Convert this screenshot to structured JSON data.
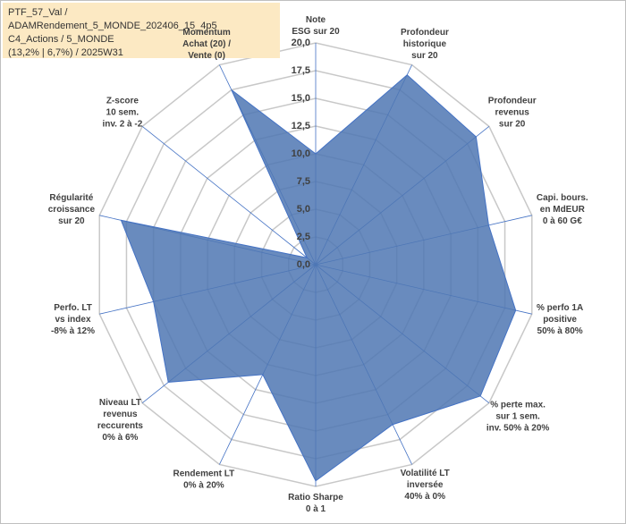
{
  "chart_data": {
    "type": "radar",
    "title": "PTF_57_Val / ADAMRendement_5_MONDE_202406_15_4p5\nC4_Actions / 5_MONDE\n(13,2% | 6,7%) / 2025W31",
    "categories": [
      "Note\nESG sur 20",
      "Profondeur\nhistorique\nsur 20",
      "Profondeur\nrevenus\nsur 20",
      "Capi. bours.\nen MdEUR\n0 à 60 G€",
      "% perfo 1A\npositive\n50% à 80%",
      "% perte max.\nsur 1 sem.\ninv. 50% à 20%",
      "Volatilité LT\ninversée\n40% à 0%",
      "Ratio Sharpe\n0 à 1",
      "Rendement LT\n0% à 20%",
      "Niveau LT\nrevenus\nreccurents\n0% à 6%",
      "Perfo. LT\nvs index\n-8% à 12%",
      "Régularité\ncroissance\nsur 20",
      "Z-score\n10 sem.\ninv. 2 à -2",
      "Momentum\nAchat (20) /\nVente (0)"
    ],
    "values": [
      10,
      19,
      18.5,
      16,
      18.5,
      19,
      16,
      19.5,
      11,
      17,
      15,
      18,
      1,
      17.5
    ],
    "color": "#4f77b3",
    "ylim": [
      0,
      20
    ],
    "yticks": [
      {
        "value": 0,
        "label": "0,0"
      },
      {
        "value": 2.5,
        "label": "2,5"
      },
      {
        "value": 5,
        "label": "5,0"
      },
      {
        "value": 7.5,
        "label": "7,5"
      },
      {
        "value": 10,
        "label": "10,0"
      },
      {
        "value": 12.5,
        "label": "12,5"
      },
      {
        "value": 15,
        "label": "15,0"
      },
      {
        "value": 17.5,
        "label": "17,5"
      },
      {
        "value": 20,
        "label": "20,0"
      }
    ],
    "grid": true
  }
}
